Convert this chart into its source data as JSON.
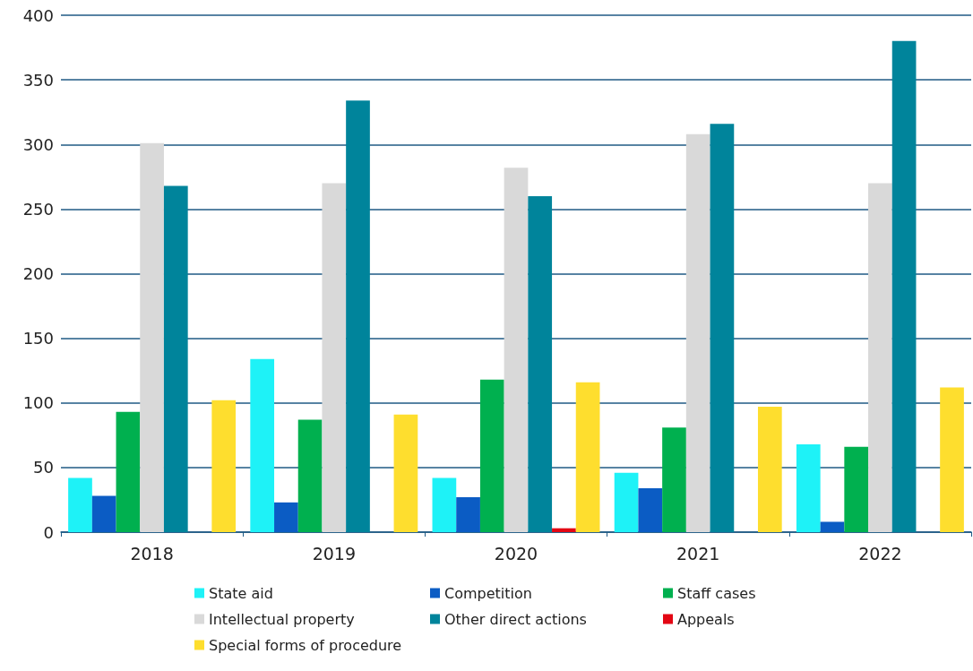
{
  "chart_data": {
    "type": "bar",
    "categories": [
      "2018",
      "2019",
      "2020",
      "2021",
      "2022"
    ],
    "series": [
      {
        "name": "State aid",
        "color": "#1ef2f7",
        "values": [
          42,
          134,
          42,
          46,
          68
        ]
      },
      {
        "name": "Competition",
        "color": "#0b5cc4",
        "values": [
          28,
          23,
          27,
          34,
          8
        ]
      },
      {
        "name": "Staff cases",
        "color": "#00b04f",
        "values": [
          93,
          87,
          118,
          81,
          66
        ]
      },
      {
        "name": "Intellectual property",
        "color": "#d9d9d9",
        "values": [
          301,
          270,
          282,
          308,
          270
        ]
      },
      {
        "name": "Other direct actions",
        "color": "#00849b",
        "values": [
          268,
          334,
          260,
          316,
          380
        ]
      },
      {
        "name": "Appeals",
        "color": "#e30613",
        "values": [
          0,
          0,
          3,
          0,
          0
        ]
      },
      {
        "name": "Special forms of procedure",
        "color": "#fede2e",
        "values": [
          102,
          91,
          116,
          97,
          112
        ]
      }
    ],
    "ylim": [
      0,
      400
    ],
    "yticks": [
      0,
      50,
      100,
      150,
      200,
      250,
      300,
      350,
      400
    ],
    "grid": "y",
    "legend": "bottom"
  }
}
